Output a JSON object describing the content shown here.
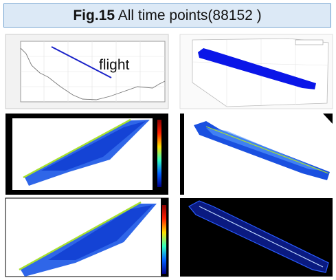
{
  "header": {
    "figure_label": "Fig.15",
    "title": "All time points(88152 )"
  },
  "panels": [
    {
      "label": "flight"
    }
  ]
}
